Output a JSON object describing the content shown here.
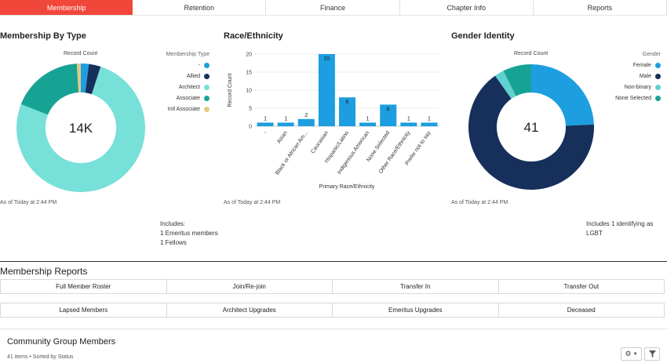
{
  "tabs": [
    {
      "label": "Membership",
      "active": true
    },
    {
      "label": "Retention",
      "active": false
    },
    {
      "label": "Finance",
      "active": false
    },
    {
      "label": "Chapter Info",
      "active": false
    },
    {
      "label": "Reports",
      "active": false
    }
  ],
  "colors": {
    "accent": "#f0473a",
    "turquoise": "#77e0d8",
    "teal": "#17a394",
    "navy": "#16305b",
    "blue": "#1c9ee0",
    "lightcyan": "#5fd2cf",
    "tan": "#e3cb85"
  },
  "membership": {
    "title": "Membership By Type",
    "record_label": "Record Count",
    "center_value": "14K",
    "legend_title": "Membership Type",
    "legend": [
      "-",
      "Allied",
      "Architect",
      "Associate",
      "Intl Associate"
    ],
    "as_of": "As of Today at 2:44 PM",
    "includes": [
      "Includes:",
      "1 Emeritus members",
      "1 Fellows"
    ]
  },
  "race": {
    "title": "Race/Ethnicity",
    "xlabel": "Primary Race/Ethnicity",
    "ylabel": "Record Count",
    "as_of": "As of Today at 2:44 PM"
  },
  "gender": {
    "title": "Gender Identity",
    "record_label": "Record Count",
    "center_value": "41",
    "legend_title": "Gender",
    "legend": [
      "Female",
      "Male",
      "Non-binary",
      "None Selected"
    ],
    "as_of": "As of Today at 2:44 PM",
    "note": "Includes 1 identifying as LGBT"
  },
  "chart_data": [
    {
      "type": "pie",
      "title": "Membership By Type",
      "labels": [
        "-",
        "Allied",
        "Architect",
        "Associate",
        "Intl Associate"
      ],
      "values": [
        2,
        3,
        76,
        18,
        1
      ],
      "colors": [
        "#1c9ee0",
        "#16305b",
        "#77e0d8",
        "#17a394",
        "#e3cb85"
      ]
    },
    {
      "type": "bar",
      "title": "Race/Ethnicity",
      "categories": [
        "-",
        "Asian",
        "Black or African Am...",
        "Caucasian",
        "Hispanic/Latino",
        "Indigenous American",
        "None Selected",
        "Other Race/Ethnicity",
        "Prefer not to say"
      ],
      "values": [
        1,
        1,
        2,
        20,
        8,
        1,
        6,
        1,
        1
      ],
      "xlabel": "Primary Race/Ethnicity",
      "ylabel": "Record Count",
      "ylim": [
        0,
        20
      ],
      "yticks": [
        0,
        5,
        10,
        15,
        20
      ]
    },
    {
      "type": "pie",
      "title": "Gender Identity",
      "labels": [
        "Female",
        "Male",
        "Non-binary",
        "None Selected"
      ],
      "values": [
        10,
        27,
        1,
        3
      ],
      "colors": [
        "#1c9ee0",
        "#16305b",
        "#5fd2cf",
        "#17a394"
      ]
    }
  ],
  "reports": {
    "title": "Membership Reports",
    "row1": [
      "Full Member Roster",
      "Join/Re-join",
      "Transfer In",
      "Transfer Out"
    ],
    "row2": [
      "Lapsed Members",
      "Architect Upgrades",
      "Emeritus Upgrades",
      "Deceased"
    ]
  },
  "community": {
    "title": "Community Group Members",
    "subtitle": "41 items • Sorted by Status",
    "settings_icon": "gear-icon",
    "filter_icon": "filter-icon"
  }
}
